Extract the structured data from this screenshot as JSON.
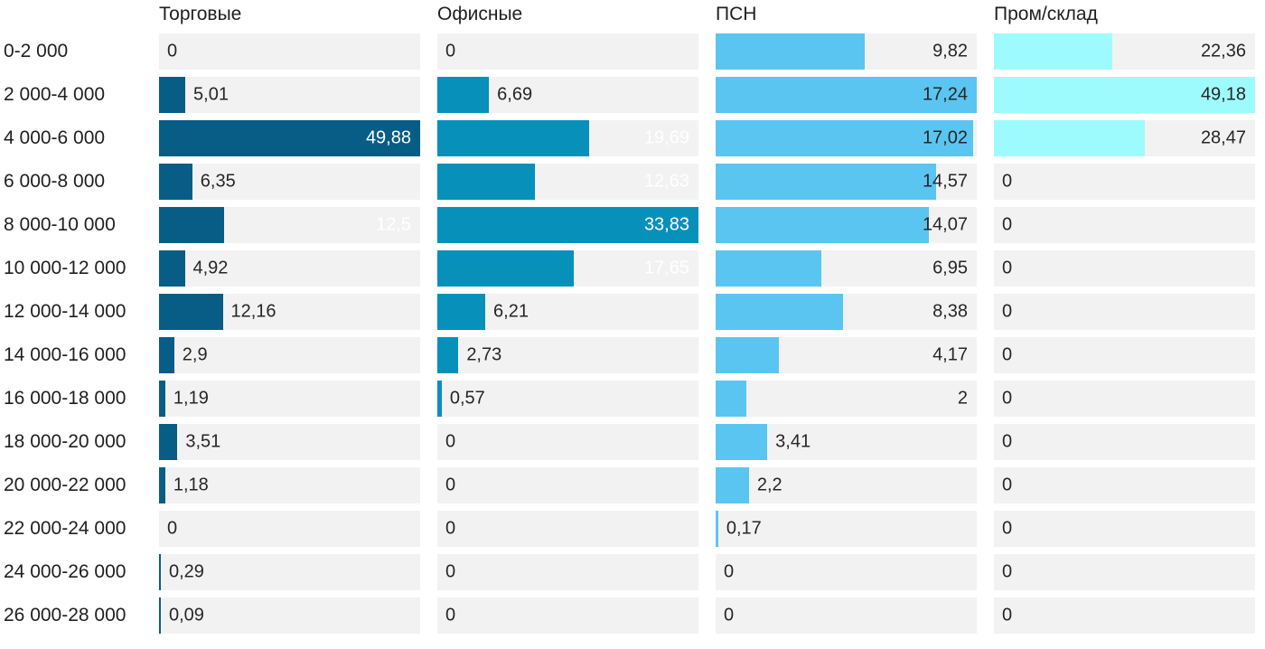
{
  "chart_data": {
    "type": "bar",
    "orientation": "horizontal",
    "layout": "small-multiples, each column scaled to its own max",
    "grid": false,
    "track_color": "#f2f2f2",
    "text_color": "#262626",
    "categories": [
      "0-2 000",
      "2 000-4 000",
      "4 000-6 000",
      "6 000-8 000",
      "8 000-10 000",
      "10 000-12 000",
      "12 000-14 000",
      "14 000-16 000",
      "16 000-18 000",
      "18 000-20 000",
      "20 000-22 000",
      "22 000-24 000",
      "24 000-26 000",
      "26 000-28 000"
    ],
    "series": [
      {
        "name": "Торговые",
        "color": "#075d85",
        "inside_label_color": "#ffffff",
        "values": [
          0,
          5.01,
          49.88,
          6.35,
          12.5,
          4.92,
          12.16,
          2.9,
          1.19,
          3.51,
          1.18,
          0,
          0.29,
          0.09
        ],
        "labels": [
          "0",
          "5,01",
          "49,88",
          "6,35",
          "12,5",
          "4,92",
          "12,16",
          "2,9",
          "1,19",
          "3,51",
          "1,18",
          "0",
          "0,29",
          "0,09"
        ]
      },
      {
        "name": "Офисные",
        "color": "#0790ba",
        "inside_label_color": "#ffffff",
        "values": [
          0,
          6.69,
          19.69,
          12.63,
          33.83,
          17.65,
          6.21,
          2.73,
          0.57,
          0,
          0,
          0,
          0,
          0
        ],
        "labels": [
          "0",
          "6,69",
          "19,69",
          "12,63",
          "33,83",
          "17,65",
          "6,21",
          "2,73",
          "0,57",
          "0",
          "0",
          "0",
          "0",
          "0"
        ]
      },
      {
        "name": "ПСН",
        "color": "#5bc5f1",
        "inside_label_color": "#262626",
        "values": [
          9.82,
          17.24,
          17.02,
          14.57,
          14.07,
          6.95,
          8.38,
          4.17,
          2,
          3.41,
          2.2,
          0.17,
          0,
          0
        ],
        "labels": [
          "9,82",
          "17,24",
          "17,02",
          "14,57",
          "14,07",
          "6,95",
          "8,38",
          "4,17",
          "2",
          "3,41",
          "2,2",
          "0,17",
          "0",
          "0"
        ]
      },
      {
        "name": "Пром/склад",
        "color": "#9efbfd",
        "inside_label_color": "#262626",
        "values": [
          22.36,
          49.18,
          28.47,
          0,
          0,
          0,
          0,
          0,
          0,
          0,
          0,
          0,
          0,
          0
        ],
        "labels": [
          "22,36",
          "49,18",
          "28,47",
          "0",
          "0",
          "0",
          "0",
          "0",
          "0",
          "0",
          "0",
          "0",
          "0",
          "0"
        ]
      }
    ]
  }
}
